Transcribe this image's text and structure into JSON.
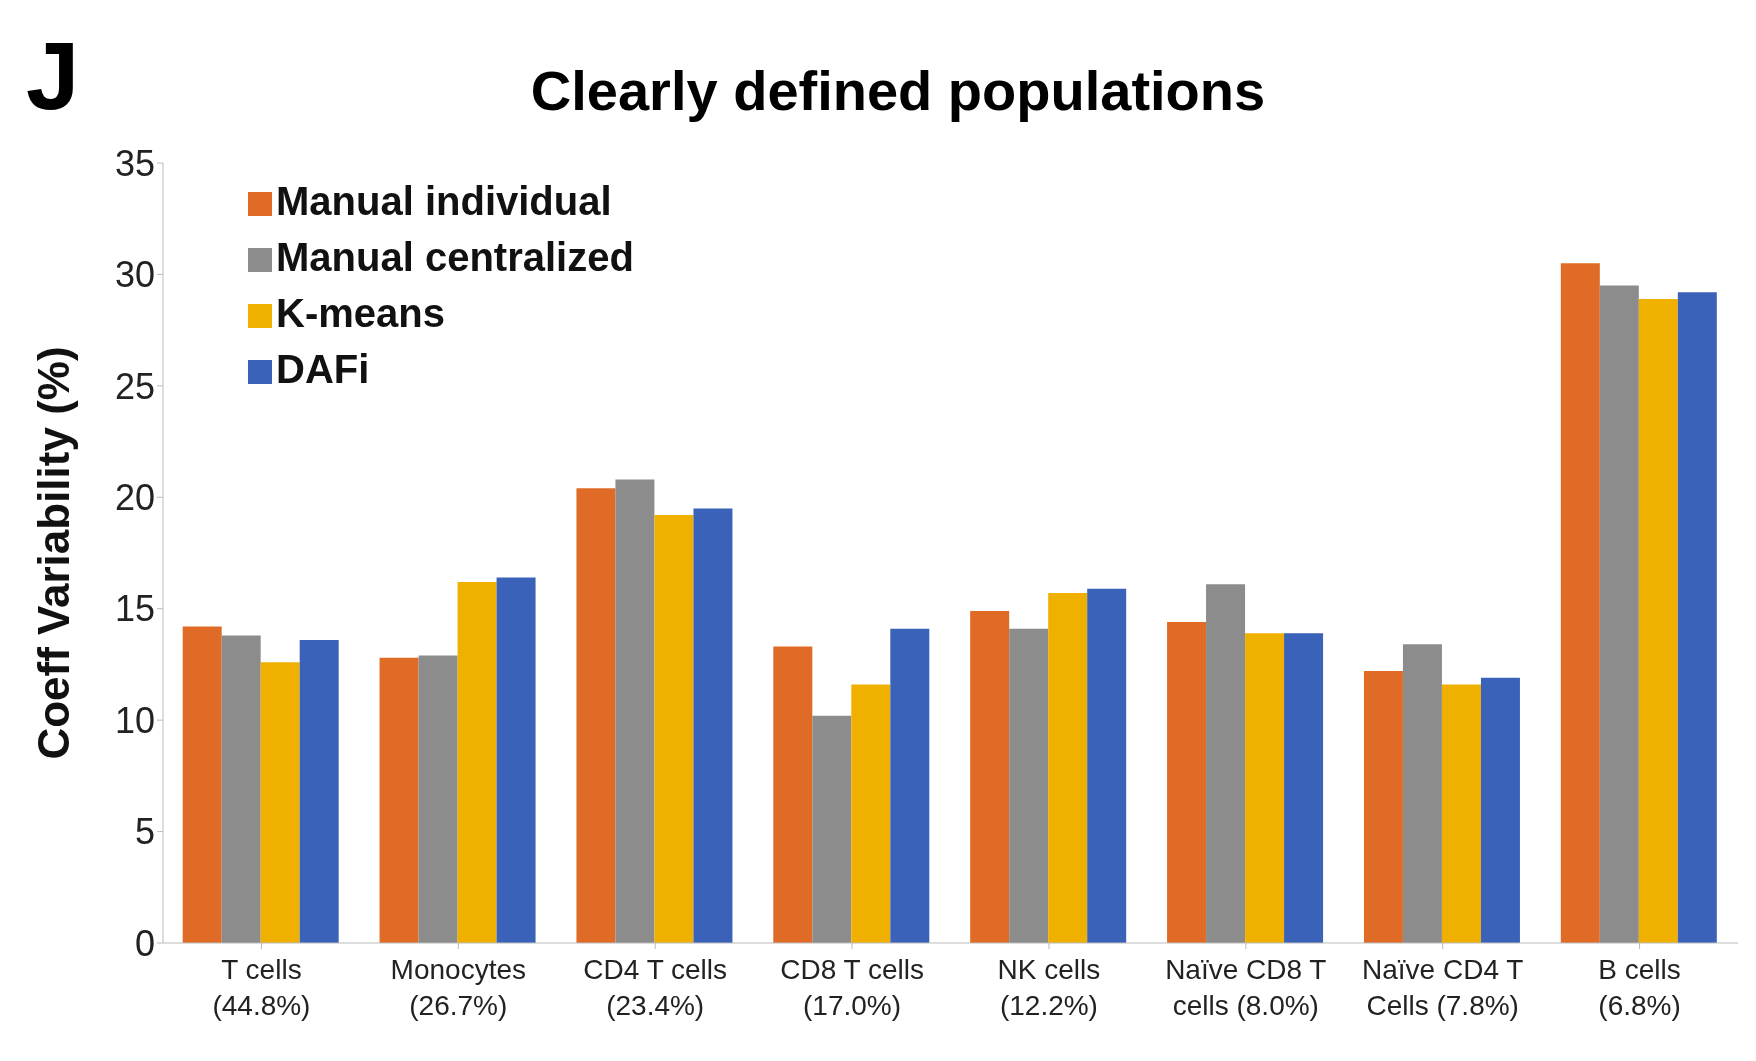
{
  "chart_data": {
    "type": "bar",
    "title": "Clearly defined populations",
    "ylabel": "Coeff Variability (%)",
    "annotations": [
      "J"
    ],
    "categories": [
      "T cells\n(44.8%)",
      "Monocytes\n(26.7%)",
      "CD4 T cells\n(23.4%)",
      "CD8 T cells\n(17.0%)",
      "NK cells\n(12.2%)",
      "Naïve CD8 T\ncells (8.0%)",
      "Naïve CD4 T\nCells (7.8%)",
      "B cells\n(6.8%)"
    ],
    "series": [
      {
        "name": "Manual individual",
        "color": "#e06b26",
        "values": [
          14.2,
          12.8,
          20.4,
          13.3,
          14.9,
          14.4,
          12.2,
          30.5
        ]
      },
      {
        "name": "Manual centralized",
        "color": "#8c8c8c",
        "values": [
          13.8,
          12.9,
          20.8,
          10.2,
          14.1,
          16.1,
          13.4,
          29.5
        ]
      },
      {
        "name": "K-means",
        "color": "#f0b000",
        "values": [
          12.6,
          16.2,
          19.2,
          11.6,
          15.7,
          13.9,
          11.6,
          28.9
        ]
      },
      {
        "name": "DAFi",
        "color": "#3a62b8",
        "values": [
          13.6,
          16.4,
          19.5,
          14.1,
          15.9,
          13.9,
          11.9,
          29.2
        ]
      }
    ],
    "ylim": [
      0,
      35
    ],
    "yticks": [
      0,
      5,
      10,
      15,
      20,
      25,
      30,
      35
    ],
    "grid": false,
    "legend": "top left"
  }
}
